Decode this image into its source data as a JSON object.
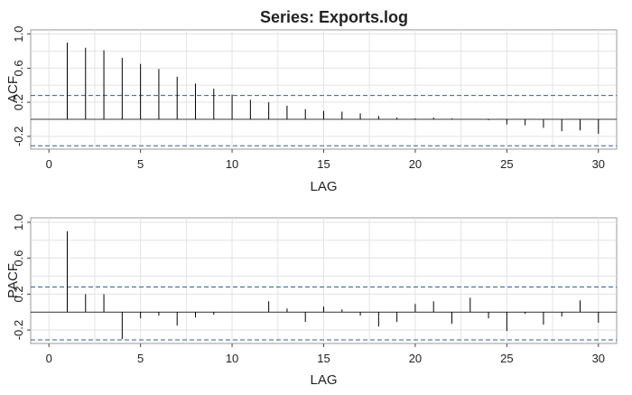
{
  "title": "Series:  Exports.log",
  "chart_data": [
    {
      "type": "bar",
      "name": "ACF",
      "ylabel": "ACF",
      "xlabel": "LAG",
      "xlim": [
        0,
        30
      ],
      "ylim": [
        -0.35,
        1.05
      ],
      "xticks": [
        0,
        5,
        10,
        15,
        20,
        25,
        30
      ],
      "yticks": [
        -0.2,
        0.2,
        0.6,
        1.0
      ],
      "ytick_labels": [
        "-0.2",
        "0.2",
        "0.6",
        "1.0"
      ],
      "confidence_bounds": [
        0.28,
        -0.31
      ],
      "grid": true,
      "x": [
        1,
        2,
        3,
        4,
        5,
        6,
        7,
        8,
        9,
        10,
        11,
        12,
        13,
        14,
        15,
        16,
        17,
        18,
        19,
        20,
        21,
        22,
        23,
        24,
        25,
        26,
        27,
        28,
        29,
        30
      ],
      "values": [
        0.9,
        0.84,
        0.81,
        0.72,
        0.65,
        0.59,
        0.5,
        0.42,
        0.36,
        0.29,
        0.23,
        0.2,
        0.16,
        0.12,
        0.1,
        0.09,
        0.07,
        0.04,
        0.02,
        0.01,
        0.02,
        0.01,
        0.0,
        -0.01,
        -0.06,
        -0.07,
        -0.1,
        -0.14,
        -0.13,
        -0.17
      ]
    },
    {
      "type": "bar",
      "name": "PACF",
      "ylabel": "PACF",
      "xlabel": "LAG",
      "xlim": [
        0,
        30
      ],
      "ylim": [
        -0.35,
        1.05
      ],
      "xticks": [
        0,
        5,
        10,
        15,
        20,
        25,
        30
      ],
      "yticks": [
        -0.2,
        0.2,
        0.6,
        1.0
      ],
      "ytick_labels": [
        "-0.2",
        "0.2",
        "0.6",
        "1.0"
      ],
      "confidence_bounds": [
        0.28,
        -0.31
      ],
      "grid": true,
      "x": [
        1,
        2,
        3,
        4,
        5,
        6,
        7,
        8,
        9,
        10,
        11,
        12,
        13,
        14,
        15,
        16,
        17,
        18,
        19,
        20,
        21,
        22,
        23,
        24,
        25,
        26,
        27,
        28,
        29,
        30
      ],
      "values": [
        0.9,
        0.2,
        0.2,
        -0.3,
        -0.07,
        -0.04,
        -0.15,
        -0.06,
        -0.03,
        0.0,
        0.0,
        0.12,
        0.04,
        -0.11,
        0.06,
        0.03,
        -0.04,
        -0.16,
        -0.11,
        0.09,
        0.12,
        -0.13,
        0.16,
        -0.07,
        -0.21,
        -0.02,
        -0.14,
        -0.05,
        0.13,
        -0.12
      ]
    }
  ]
}
